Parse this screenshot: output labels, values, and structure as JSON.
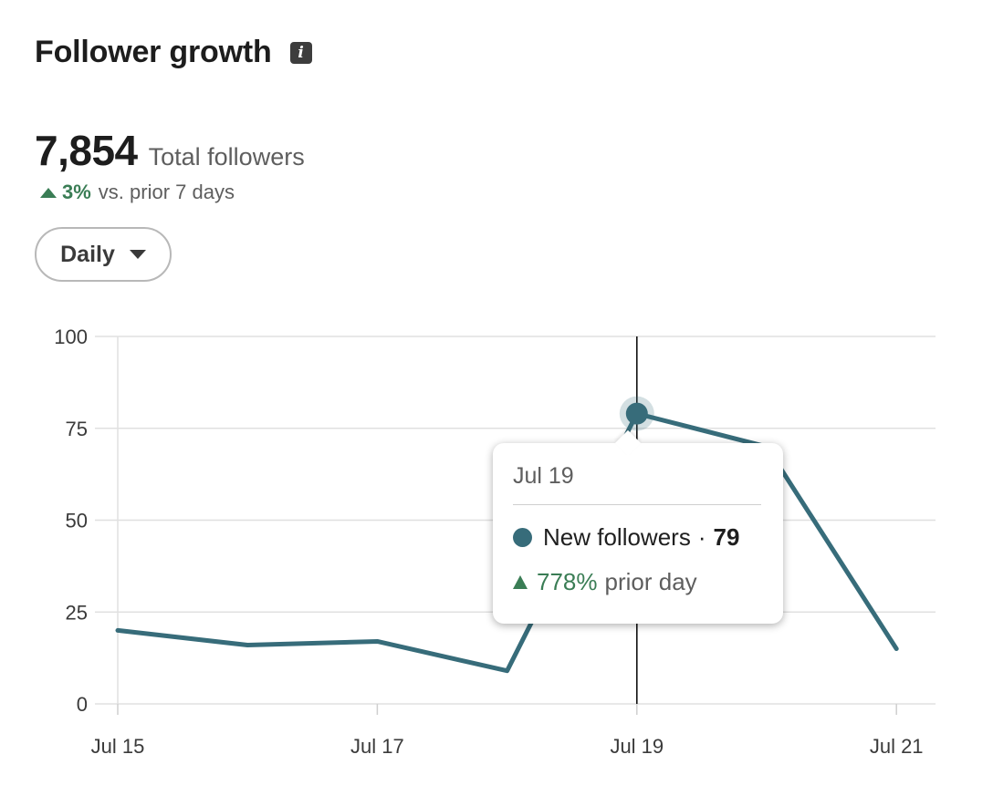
{
  "header": {
    "title": "Follower growth",
    "info_icon": "info-icon"
  },
  "summary": {
    "total_value": "7,854",
    "total_label": "Total followers",
    "change_pct": "3%",
    "change_text": "vs. prior 7 days",
    "change_direction": "up"
  },
  "filter": {
    "selected": "Daily"
  },
  "colors": {
    "line": "#376c7a",
    "positive": "#3a7d55",
    "grid": "#e0e0e0"
  },
  "chart_data": {
    "type": "line",
    "x": [
      "Jul 15",
      "Jul 16",
      "Jul 17",
      "Jul 18",
      "Jul 19",
      "Jul 20",
      "Jul 21"
    ],
    "series": [
      {
        "name": "New followers",
        "values": [
          20,
          16,
          17,
          9,
          79,
          70,
          15
        ]
      }
    ],
    "x_tick_labels": [
      "Jul 15",
      "Jul 17",
      "Jul 19",
      "Jul 21"
    ],
    "y_ticks": [
      0,
      25,
      50,
      75,
      100
    ],
    "ylim": [
      0,
      100
    ],
    "grid": true,
    "highlight_index": 4
  },
  "tooltip": {
    "date": "Jul 19",
    "series_name": "New followers",
    "separator": "·",
    "value": "79",
    "change_pct": "778%",
    "change_text": "prior day"
  }
}
